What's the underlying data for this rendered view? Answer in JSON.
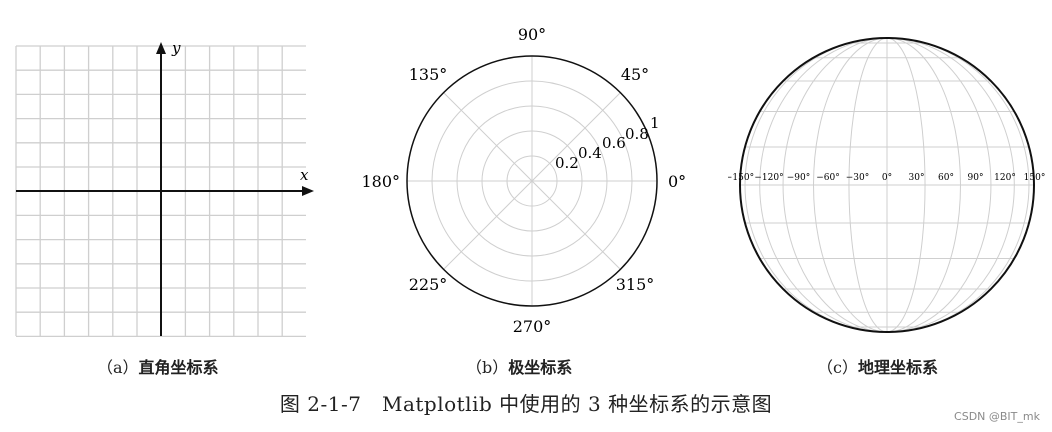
{
  "panels": {
    "cartesian": {
      "x_label": "x",
      "y_label": "y",
      "caption_letter": "（a）",
      "caption_text": "直角坐标系"
    },
    "polar": {
      "angle_labels": [
        "90°",
        "45°",
        "0°",
        "315°",
        "270°",
        "225°",
        "180°",
        "135°"
      ],
      "radial_labels": [
        "0.2",
        "0.4",
        "0.6",
        "0.8",
        "1"
      ],
      "caption_letter": "（b）",
      "caption_text": "极坐标系"
    },
    "geo": {
      "lon_labels": [
        "−150°",
        "−120°",
        "−90°",
        "−60°",
        "−30°",
        "0°",
        "30°",
        "60°",
        "90°",
        "120°",
        "150°"
      ],
      "caption_letter": "（c）",
      "caption_text": "地理坐标系"
    }
  },
  "figure_title": "图 2-1-7　Matplotlib 中使用的 3 种坐标系的示意图",
  "watermark": "CSDN @BIT_mk",
  "colors": {
    "grid": "#cfcfcf",
    "axis": "#111111",
    "outline": "#222222"
  }
}
